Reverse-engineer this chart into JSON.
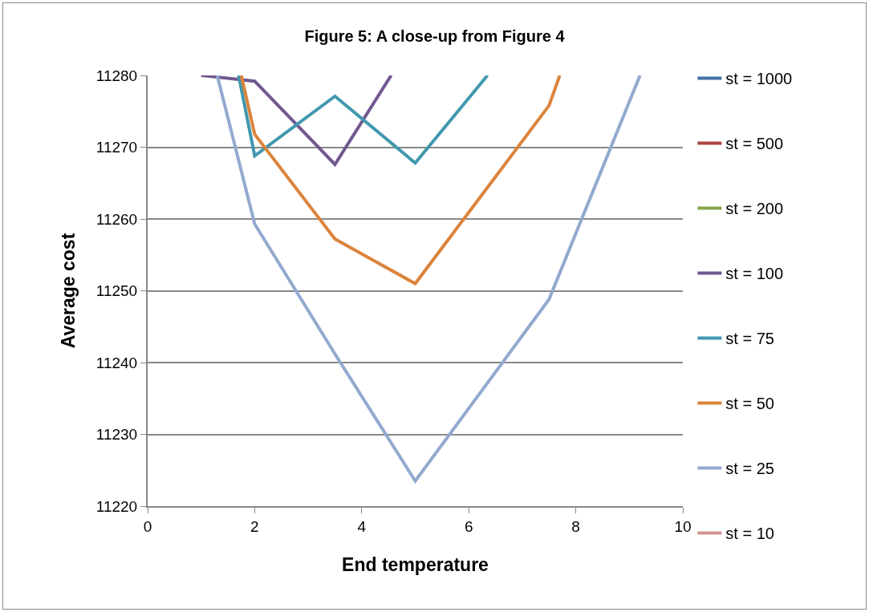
{
  "chart_data": {
    "type": "line",
    "title": "Figure 5: A close-up from Figure 4",
    "xlabel": "End temperature",
    "ylabel": "Average cost",
    "xlim": [
      0,
      10
    ],
    "xticks": [
      0,
      2,
      4,
      6,
      8,
      10
    ],
    "ylim": [
      11220,
      11280
    ],
    "yticks": [
      11220,
      11230,
      11240,
      11250,
      11260,
      11270,
      11280
    ],
    "grid": "y",
    "legend": "right",
    "marker": "none",
    "line_style": "solid",
    "series": [
      {
        "name": "st = 1000",
        "color": "#4572a7"
      },
      {
        "name": "st = 500",
        "color": "#aa4643"
      },
      {
        "name": "st = 200",
        "color": "#89a54e"
      },
      {
        "name": "st = 100",
        "color": "#71588f",
        "x": [
          1,
          2,
          3.5,
          4.55
        ],
        "values": [
          11280,
          11279.2,
          11267.6,
          11280
        ]
      },
      {
        "name": "st = 75",
        "color": "#4198af",
        "x": [
          1.7,
          2,
          3.5,
          5,
          6.35
        ],
        "values": [
          11280,
          11268.8,
          11277.1,
          11267.8,
          11280
        ]
      },
      {
        "name": "st = 50",
        "color": "#db843d",
        "x": [
          1.75,
          2,
          3.5,
          5,
          7.5,
          7.7
        ],
        "values": [
          11280,
          11271.8,
          11257.2,
          11251,
          11275.8,
          11280
        ]
      },
      {
        "name": "st = 25",
        "color": "#93a9cf",
        "x": [
          1.3,
          2,
          3.5,
          5,
          7.5,
          9.2
        ],
        "values": [
          11280,
          11259.3,
          11241.2,
          11223.5,
          11248.8,
          11280
        ]
      },
      {
        "name": "st = 10",
        "color": "#d19392"
      }
    ]
  }
}
